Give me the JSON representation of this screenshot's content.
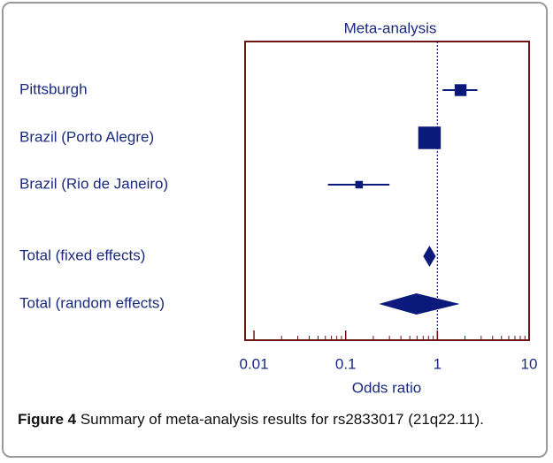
{
  "chart_data": {
    "type": "forest",
    "title": "Meta-analysis",
    "x_label": "Odds ratio",
    "xscale": "log",
    "xlim": [
      0.008,
      10
    ],
    "xticks": [
      0.01,
      0.1,
      1,
      10
    ],
    "xminorticks": [
      0.02,
      0.03,
      0.04,
      0.05,
      0.06,
      0.07,
      0.08,
      0.09,
      0.2,
      0.3,
      0.4,
      0.5,
      0.6,
      0.7,
      0.8,
      0.9,
      2,
      3,
      4,
      5,
      6,
      7,
      8,
      9
    ],
    "reference_line": 1,
    "color": "#0b1a7a",
    "frame_color": "#6e1414",
    "studies": [
      {
        "name": "Pittsburgh",
        "or": 1.79,
        "ci_low": 1.14,
        "ci_high": 2.73,
        "weight": 20
      },
      {
        "name": "Brazil (Porto Alegre)",
        "or": 0.82,
        "ci_low": 0.64,
        "ci_high": 1.05,
        "weight": 72
      },
      {
        "name": "Brazil (Rio de Janeiro)",
        "or": 0.14,
        "ci_low": 0.064,
        "ci_high": 0.3,
        "weight": 8
      }
    ],
    "pooled": [
      {
        "name": "Total (fixed effects)",
        "or": 0.82,
        "ci_low": 0.7,
        "ci_high": 0.96
      },
      {
        "name": "Total (random effects)",
        "or": 0.59,
        "ci_low": 0.23,
        "ci_high": 1.75
      }
    ]
  },
  "caption": {
    "label": "Figure 4",
    "text": " Summary of meta-analysis results for rs2833017 (21q22.11)."
  }
}
